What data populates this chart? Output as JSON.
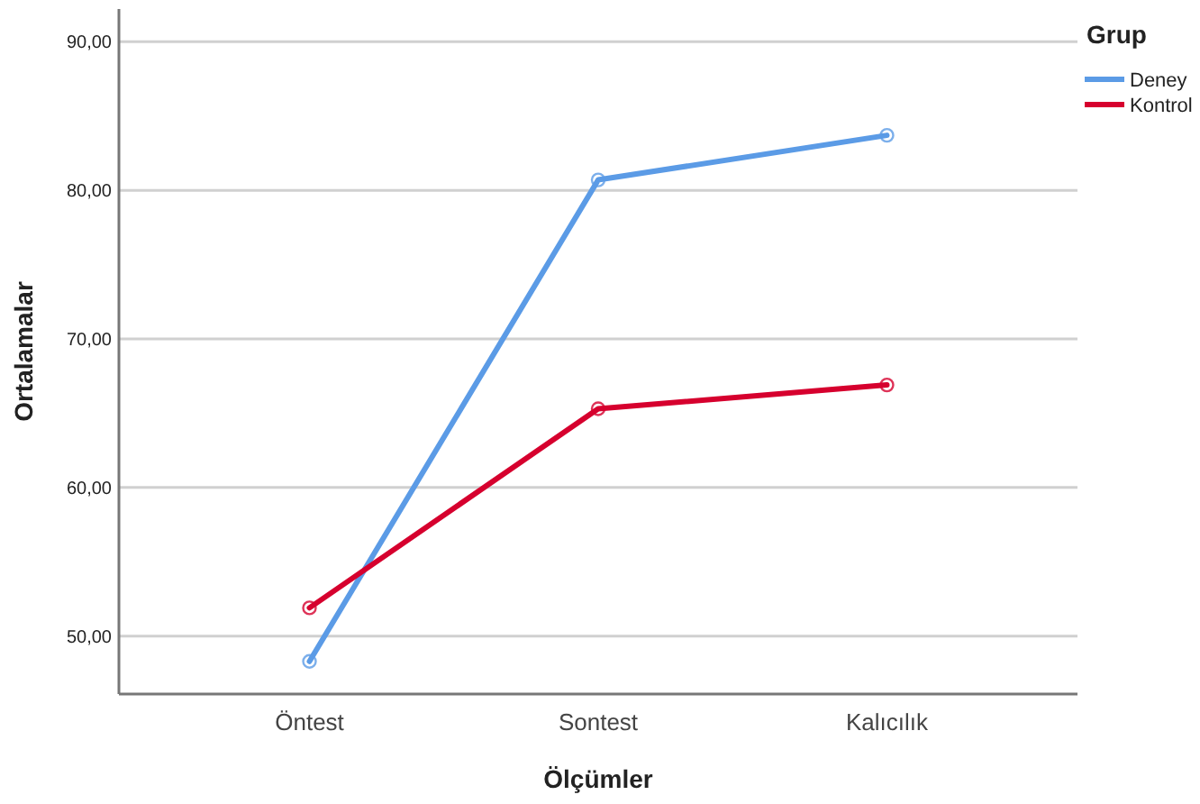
{
  "chart_data": {
    "type": "line",
    "xlabel": "Ölçümler",
    "ylabel": "Ortalamalar",
    "legend_title": "Grup",
    "categories": [
      "Öntest",
      "Sontest",
      "Kalıcılık"
    ],
    "series": [
      {
        "name": "Deney",
        "color": "#5b9be6",
        "values": [
          48.3,
          80.7,
          83.7
        ]
      },
      {
        "name": "Kontrol",
        "color": "#d6002e",
        "values": [
          51.9,
          65.3,
          66.9
        ]
      }
    ],
    "ylim": [
      46.1,
      92.2
    ],
    "yticks": [
      {
        "value": 50,
        "label": "50,00"
      },
      {
        "value": 60,
        "label": "60,00"
      },
      {
        "value": 70,
        "label": "70,00"
      },
      {
        "value": 80,
        "label": "80,00"
      },
      {
        "value": 90,
        "label": "90,00"
      }
    ],
    "grid": "y",
    "legend": "top right",
    "marker": "circle",
    "line_style": "solid"
  }
}
